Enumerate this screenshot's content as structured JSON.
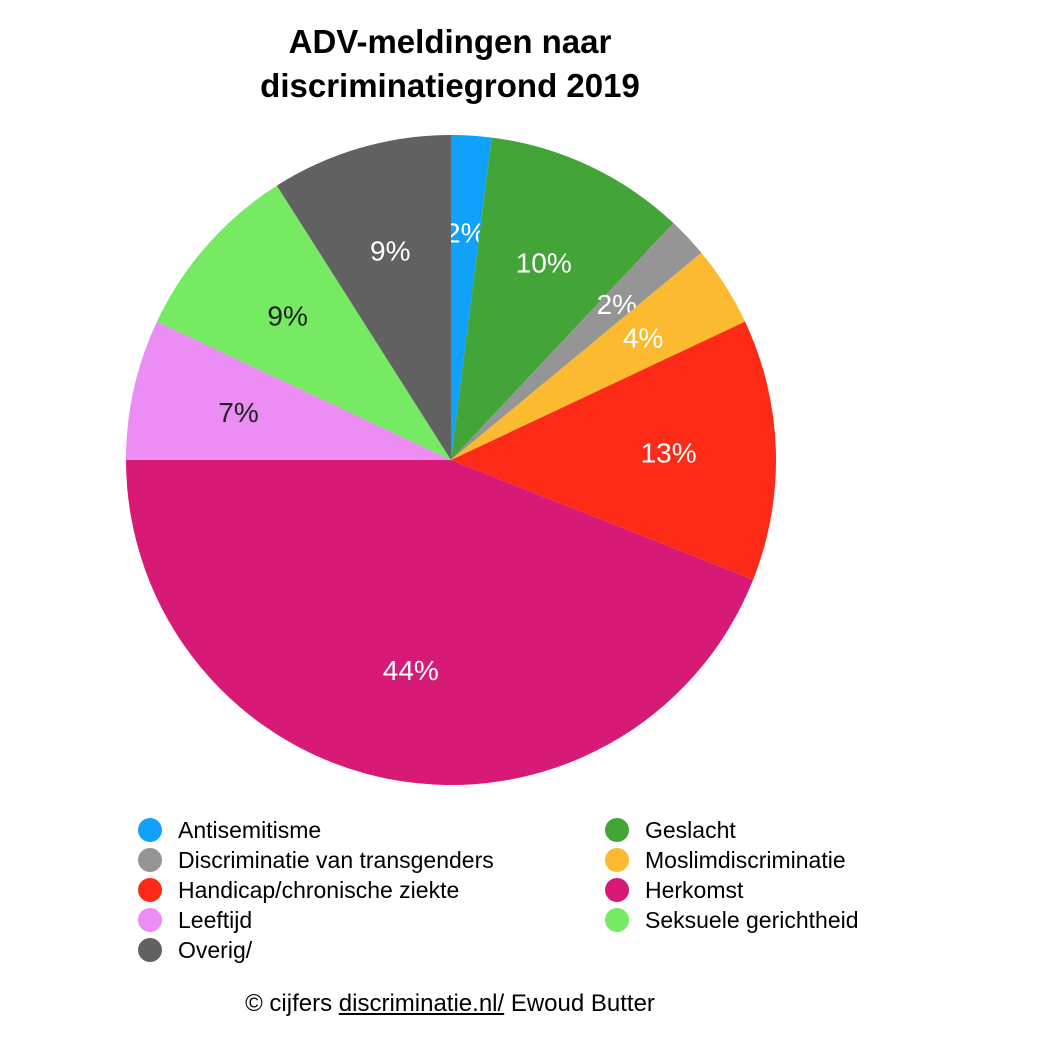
{
  "chart_data": {
    "type": "pie",
    "title_lines": [
      "ADV-meldingen naar",
      "discriminatiegrond 2019"
    ],
    "slices": [
      {
        "label": "Antisemitisme",
        "value": 2,
        "display": "2%",
        "color": "#10A1FB",
        "label_color": "#ffffff"
      },
      {
        "label": "Geslacht",
        "value": 10,
        "display": "10%",
        "color": "#43A437",
        "label_color": "#ffffff"
      },
      {
        "label": "Discriminatie van transgenders",
        "value": 2,
        "display": "2%",
        "color": "#959595",
        "label_color": "#ffffff"
      },
      {
        "label": "Moslimdiscriminatie",
        "value": 4,
        "display": "4%",
        "color": "#FBBA2F",
        "label_color": "#ffffff"
      },
      {
        "label": "Handicap/chronische ziekte",
        "value": 13,
        "display": "13%",
        "color": "#FD2A17",
        "label_color": "#ffffff"
      },
      {
        "label": "Herkomst",
        "value": 44,
        "display": "44%",
        "color": "#D71A75",
        "label_color": "#ffffff"
      },
      {
        "label": "Leeftijd",
        "value": 7,
        "display": "7%",
        "color": "#EC8DF6",
        "label_color": "#222222"
      },
      {
        "label": "Seksuele gerichtheid",
        "value": 9,
        "display": "9%",
        "color": "#75EA62",
        "label_color": "#222222"
      },
      {
        "label": "Overig/",
        "value": 9,
        "display": "9%",
        "color": "#616161",
        "label_color": "#ffffff"
      }
    ],
    "legend": {
      "placement": "bottom",
      "columns": [
        [
          "Antisemitisme",
          "Discriminatie van transgenders",
          "Handicap/chronische ziekte",
          "Leeftijd",
          "Overig/"
        ],
        [
          "Geslacht",
          "Moslimdiscriminatie",
          "Herkomst",
          "Seksuele gerichtheid"
        ]
      ]
    }
  },
  "credit": {
    "prefix": "© cijfers ",
    "link": "discriminatie.nl/",
    "suffix": " Ewoud Butter"
  }
}
